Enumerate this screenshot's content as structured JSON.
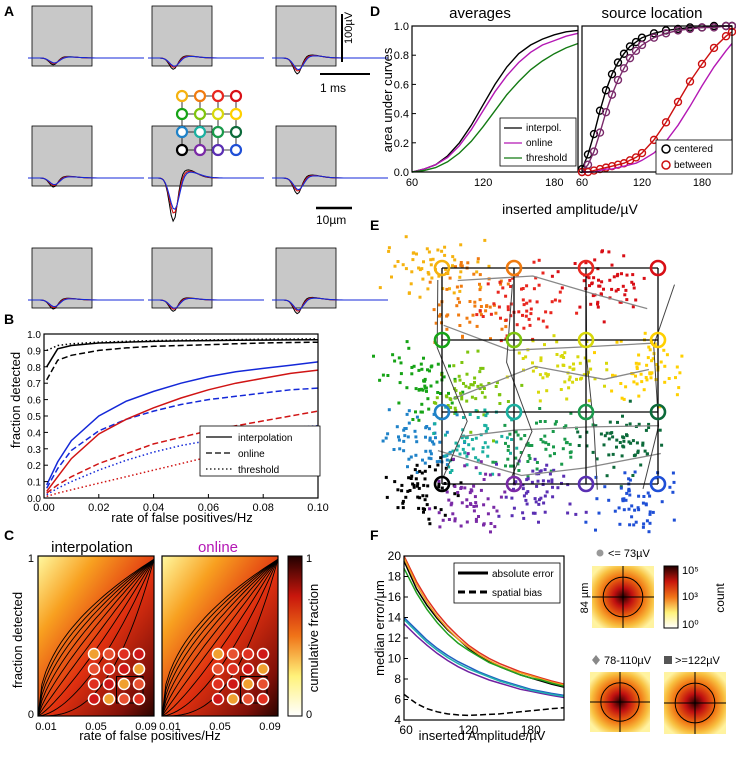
{
  "panels": {
    "A": {
      "letter": "A",
      "scale_voltage": "100µV",
      "scale_time": "1 ms",
      "scale_space": "10µm",
      "grid_colors": [
        "#f5b20f",
        "#f07b10",
        "#e8261f",
        "#d80f16",
        "#16a316",
        "#7ec40e",
        "#d7d80b",
        "#ffd000",
        "#1f82c8",
        "#1ab0a0",
        "#1a9a4b",
        "#0c6a3a",
        "#000000",
        "#7a2aa6",
        "#5a2fb3",
        "#1f4fd6"
      ]
    },
    "B": {
      "letter": "B",
      "ylabel": "fraction detected",
      "xlabel": "rate of false positives/Hz",
      "x_ticks": [
        "0.00",
        "0.02",
        "0.04",
        "0.06",
        "0.08",
        "0.10"
      ],
      "y_ticks": [
        "0.0",
        "0.1",
        "0.2",
        "0.3",
        "0.4",
        "0.5",
        "0.6",
        "0.7",
        "0.8",
        "0.9",
        "1.0"
      ],
      "legend": [
        "interpolation",
        "online",
        "threshold"
      ]
    },
    "C": {
      "letter": "C",
      "title_left": "interpolation",
      "title_right": "online",
      "ylabel": "fraction detected",
      "xlabel": "rate of false positives/Hz",
      "x_ticks": [
        "0.01",
        "0.05",
        "0.09"
      ],
      "y_ticks": [
        "0",
        "1"
      ],
      "colorbar_label": "cumulative fraction",
      "colorbar_ticks": [
        "0",
        "1"
      ]
    },
    "D": {
      "letter": "D",
      "title_left": "averages",
      "title_right": "source location",
      "ylabel": "area under curves",
      "xlabel": "inserted amplitude/µV",
      "x_ticks": [
        "60",
        "120",
        "180"
      ],
      "x_ticks_right": [
        "60",
        "120",
        "180"
      ],
      "y_ticks": [
        "0.0",
        "0.2",
        "0.4",
        "0.6",
        "0.8",
        "1.0"
      ],
      "legend_left": [
        "interpol.",
        "online",
        "threshold"
      ],
      "legend_right": [
        "centered",
        "between"
      ]
    },
    "E": {
      "letter": "E"
    },
    "F": {
      "letter": "F",
      "ylabel": "median error/µm",
      "xlabel": "inserted Amplitude/µV",
      "x_ticks": [
        "60",
        "120",
        "180"
      ],
      "y_ticks": [
        "4",
        "6",
        "8",
        "10",
        "12",
        "14",
        "16",
        "18",
        "20"
      ],
      "legend": [
        "absolute error",
        "spatial bias"
      ],
      "hist_label_top": "<= 73µV",
      "hist_label_mid": "78-110µV",
      "hist_label_right": ">=122µV",
      "hist_size": "84 µm",
      "count_ticks": [
        "10⁵",
        "10³",
        "10⁰"
      ],
      "count_label": "count"
    }
  },
  "chart_data": [
    {
      "panel": "B",
      "type": "line",
      "title": "",
      "xlabel": "rate of false positives/Hz",
      "ylabel": "fraction detected",
      "xlim": [
        0,
        0.1
      ],
      "ylim": [
        0,
        1
      ],
      "x": [
        0.001,
        0.005,
        0.01,
        0.02,
        0.03,
        0.04,
        0.05,
        0.06,
        0.07,
        0.08,
        0.09,
        0.1
      ],
      "series": [
        {
          "name": "interpolation black",
          "color": "#000000",
          "dash": "solid",
          "values": [
            0.8,
            0.91,
            0.93,
            0.945,
            0.95,
            0.955,
            0.958,
            0.96,
            0.962,
            0.963,
            0.964,
            0.965
          ]
        },
        {
          "name": "online black",
          "color": "#000000",
          "dash": "dashed",
          "values": [
            0.72,
            0.84,
            0.87,
            0.9,
            0.915,
            0.925,
            0.93,
            0.935,
            0.94,
            0.945,
            0.948,
            0.95
          ]
        },
        {
          "name": "threshold black",
          "color": "#000000",
          "dash": "dotted",
          "values": [
            0.9,
            0.93,
            0.94,
            0.95,
            0.955,
            0.96,
            0.962,
            0.964,
            0.966,
            0.968,
            0.969,
            0.97
          ]
        },
        {
          "name": "interpolation blue",
          "color": "#1428d8",
          "dash": "solid",
          "values": [
            0.08,
            0.22,
            0.35,
            0.5,
            0.59,
            0.65,
            0.7,
            0.74,
            0.77,
            0.79,
            0.81,
            0.83
          ]
        },
        {
          "name": "online blue",
          "color": "#1428d8",
          "dash": "dashed",
          "values": [
            0.06,
            0.18,
            0.29,
            0.41,
            0.48,
            0.53,
            0.57,
            0.6,
            0.62,
            0.64,
            0.66,
            0.67
          ]
        },
        {
          "name": "interpolation red",
          "color": "#d01414",
          "dash": "solid",
          "values": [
            0.04,
            0.13,
            0.24,
            0.39,
            0.48,
            0.55,
            0.61,
            0.66,
            0.7,
            0.73,
            0.76,
            0.78
          ]
        },
        {
          "name": "online red",
          "color": "#d01414",
          "dash": "dashed",
          "values": [
            0.03,
            0.08,
            0.13,
            0.21,
            0.27,
            0.33,
            0.37,
            0.41,
            0.44,
            0.47,
            0.5,
            0.53
          ]
        },
        {
          "name": "threshold red",
          "color": "#d01414",
          "dash": "dotted",
          "values": [
            0.01,
            0.03,
            0.05,
            0.09,
            0.13,
            0.17,
            0.21,
            0.25,
            0.29,
            0.32,
            0.35,
            0.37
          ]
        },
        {
          "name": "threshold blue",
          "color": "#1428d8",
          "dash": "dotted",
          "values": [
            0.02,
            0.06,
            0.1,
            0.17,
            0.23,
            0.28,
            0.32,
            0.35,
            0.38,
            0.41,
            0.43,
            0.44
          ]
        }
      ]
    },
    {
      "panel": "D-left",
      "type": "line",
      "title": "averages",
      "xlabel": "inserted amplitude/µV",
      "ylabel": "area under curves",
      "xlim": [
        60,
        200
      ],
      "ylim": [
        0,
        1
      ],
      "x": [
        60,
        70,
        80,
        90,
        100,
        110,
        120,
        130,
        140,
        150,
        160,
        170,
        180,
        190,
        200
      ],
      "series": [
        {
          "name": "interpol.",
          "color": "#000000",
          "values": [
            0.0,
            0.02,
            0.05,
            0.11,
            0.2,
            0.32,
            0.46,
            0.6,
            0.72,
            0.81,
            0.87,
            0.91,
            0.94,
            0.96,
            0.97
          ]
        },
        {
          "name": "online",
          "color": "#b418b4",
          "values": [
            0.0,
            0.02,
            0.05,
            0.1,
            0.18,
            0.29,
            0.42,
            0.55,
            0.66,
            0.75,
            0.82,
            0.87,
            0.9,
            0.93,
            0.95
          ]
        },
        {
          "name": "threshold",
          "color": "#137a13",
          "values": [
            0.0,
            0.01,
            0.03,
            0.07,
            0.13,
            0.21,
            0.31,
            0.42,
            0.53,
            0.62,
            0.7,
            0.76,
            0.81,
            0.85,
            0.88
          ]
        }
      ]
    },
    {
      "panel": "D-right",
      "type": "line",
      "title": "source location",
      "xlabel": "inserted amplitude/µV",
      "xlim": [
        60,
        210
      ],
      "ylim": [
        0,
        1
      ],
      "x": [
        60,
        66,
        72,
        78,
        84,
        90,
        96,
        102,
        108,
        114,
        120,
        132,
        144,
        156,
        168,
        180,
        192,
        204,
        210
      ],
      "series": [
        {
          "name": "centered (black)",
          "color": "#000000",
          "marker": "circle",
          "values": [
            0.02,
            0.12,
            0.26,
            0.42,
            0.56,
            0.67,
            0.75,
            0.81,
            0.86,
            0.89,
            0.92,
            0.95,
            0.97,
            0.98,
            0.99,
            0.99,
            1.0,
            1.0,
            1.0
          ]
        },
        {
          "name": "centered (purple)",
          "color": "#7a2a6a",
          "marker": "circle",
          "values": [
            0.0,
            0.05,
            0.14,
            0.27,
            0.41,
            0.53,
            0.63,
            0.71,
            0.78,
            0.83,
            0.87,
            0.92,
            0.95,
            0.97,
            0.98,
            0.99,
            0.99,
            1.0,
            1.0
          ]
        },
        {
          "name": "between (red)",
          "color": "#cc1010",
          "marker": "circle",
          "values": [
            0.0,
            0.0,
            0.01,
            0.02,
            0.03,
            0.04,
            0.05,
            0.06,
            0.08,
            0.1,
            0.13,
            0.22,
            0.34,
            0.48,
            0.62,
            0.74,
            0.85,
            0.93,
            0.96
          ]
        },
        {
          "name": "between (magenta)",
          "color": "#b418b4",
          "values": [
            0.0,
            0.0,
            0.0,
            0.01,
            0.02,
            0.02,
            0.03,
            0.04,
            0.05,
            0.06,
            0.08,
            0.13,
            0.21,
            0.32,
            0.45,
            0.59,
            0.72,
            0.83,
            0.88
          ]
        }
      ]
    },
    {
      "panel": "F",
      "type": "line",
      "xlabel": "inserted Amplitude/µV",
      "ylabel": "median error/µm",
      "xlim": [
        58,
        212
      ],
      "ylim": [
        4,
        20
      ],
      "x": [
        58,
        70,
        80,
        90,
        100,
        110,
        120,
        130,
        140,
        150,
        160,
        170,
        180,
        190,
        200,
        212
      ],
      "series": [
        {
          "name": "absolute error 1",
          "color": "#000000",
          "values": [
            19.5,
            16.8,
            15.2,
            13.9,
            12.8,
            11.9,
            11.0,
            10.3,
            9.7,
            9.2,
            8.8,
            8.4,
            8.1,
            7.8,
            7.5,
            7.2
          ]
        },
        {
          "name": "absolute error 2",
          "color": "#e03020",
          "values": [
            20.0,
            17.5,
            15.8,
            14.4,
            13.2,
            12.2,
            11.3,
            10.6,
            10.0,
            9.5,
            9.1,
            8.7,
            8.4,
            8.1,
            7.8,
            7.5
          ]
        },
        {
          "name": "absolute error 3",
          "color": "#f0a020",
          "values": [
            19.8,
            17.2,
            15.5,
            14.1,
            12.9,
            11.9,
            11.1,
            10.4,
            9.8,
            9.3,
            8.9,
            8.6,
            8.3,
            8.0,
            7.7,
            7.4
          ]
        },
        {
          "name": "absolute error 4",
          "color": "#20a020",
          "values": [
            18.8,
            16.4,
            14.8,
            13.5,
            12.4,
            11.5,
            10.8,
            10.2,
            9.6,
            9.2,
            8.8,
            8.4,
            8.1,
            7.9,
            7.6,
            7.3
          ]
        },
        {
          "name": "absolute error 5",
          "color": "#2060c0",
          "values": [
            14.0,
            12.8,
            11.8,
            11.0,
            10.3,
            9.7,
            9.2,
            8.7,
            8.3,
            7.9,
            7.6,
            7.3,
            7.0,
            6.8,
            6.6,
            6.4
          ]
        },
        {
          "name": "absolute error 6",
          "color": "#7020a0",
          "values": [
            13.4,
            12.2,
            11.3,
            10.5,
            9.8,
            9.2,
            8.7,
            8.3,
            7.9,
            7.6,
            7.3,
            7.0,
            6.8,
            6.6,
            6.4,
            6.2
          ]
        },
        {
          "name": "absolute error 7",
          "color": "#20b0b0",
          "values": [
            13.8,
            12.6,
            11.6,
            10.8,
            10.1,
            9.5,
            9.0,
            8.6,
            8.2,
            7.8,
            7.5,
            7.2,
            6.9,
            6.7,
            6.5,
            6.3
          ]
        },
        {
          "name": "spatial bias",
          "color": "#000000",
          "dash": "dashed",
          "values": [
            6.5,
            5.6,
            5.1,
            4.8,
            4.6,
            4.5,
            4.45,
            4.5,
            4.55,
            4.6,
            4.7,
            4.8,
            4.9,
            5.0,
            5.1,
            5.2
          ]
        }
      ]
    }
  ]
}
